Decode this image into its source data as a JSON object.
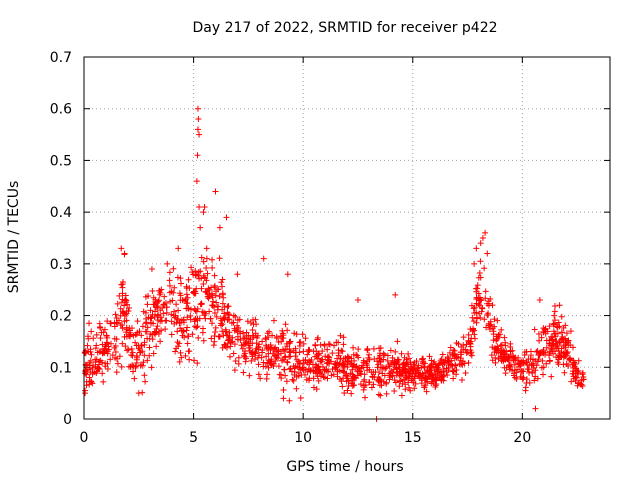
{
  "chart_data": {
    "type": "scatter",
    "title": "Day 217 of 2022, SRMTID for receiver p422",
    "xlabel": "GPS time / hours",
    "ylabel": "SRMTID / TECUs",
    "xlim": [
      0,
      24
    ],
    "ylim": [
      0,
      0.7
    ],
    "xticks": [
      0,
      5,
      10,
      15,
      20
    ],
    "yticks": [
      0,
      0.1,
      0.2,
      0.3,
      0.4,
      0.5,
      0.6,
      0.7
    ],
    "grid": true,
    "marker": "plus",
    "color": "#ff0000",
    "series": [
      {
        "name": "SRMTID",
        "envelope": [
          {
            "x": 0.0,
            "mean": 0.11,
            "spread": 0.05
          },
          {
            "x": 0.5,
            "mean": 0.12,
            "spread": 0.06
          },
          {
            "x": 1.0,
            "mean": 0.13,
            "spread": 0.05
          },
          {
            "x": 1.5,
            "mean": 0.15,
            "spread": 0.06
          },
          {
            "x": 1.8,
            "mean": 0.22,
            "spread": 0.08
          },
          {
            "x": 2.2,
            "mean": 0.12,
            "spread": 0.06
          },
          {
            "x": 2.7,
            "mean": 0.13,
            "spread": 0.06
          },
          {
            "x": 3.0,
            "mean": 0.18,
            "spread": 0.06
          },
          {
            "x": 3.5,
            "mean": 0.21,
            "spread": 0.07
          },
          {
            "x": 4.0,
            "mean": 0.22,
            "spread": 0.07
          },
          {
            "x": 4.5,
            "mean": 0.19,
            "spread": 0.07
          },
          {
            "x": 5.0,
            "mean": 0.22,
            "spread": 0.09
          },
          {
            "x": 5.5,
            "mean": 0.25,
            "spread": 0.08
          },
          {
            "x": 6.0,
            "mean": 0.22,
            "spread": 0.07
          },
          {
            "x": 6.5,
            "mean": 0.18,
            "spread": 0.06
          },
          {
            "x": 7.0,
            "mean": 0.15,
            "spread": 0.05
          },
          {
            "x": 8.0,
            "mean": 0.13,
            "spread": 0.05
          },
          {
            "x": 9.0,
            "mean": 0.13,
            "spread": 0.05
          },
          {
            "x": 10.0,
            "mean": 0.11,
            "spread": 0.05
          },
          {
            "x": 11.0,
            "mean": 0.11,
            "spread": 0.04
          },
          {
            "x": 12.0,
            "mean": 0.1,
            "spread": 0.04
          },
          {
            "x": 13.0,
            "mean": 0.09,
            "spread": 0.04
          },
          {
            "x": 14.0,
            "mean": 0.1,
            "spread": 0.04
          },
          {
            "x": 15.0,
            "mean": 0.09,
            "spread": 0.03
          },
          {
            "x": 16.0,
            "mean": 0.09,
            "spread": 0.03
          },
          {
            "x": 17.0,
            "mean": 0.11,
            "spread": 0.03
          },
          {
            "x": 17.6,
            "mean": 0.14,
            "spread": 0.04
          },
          {
            "x": 18.0,
            "mean": 0.25,
            "spread": 0.07
          },
          {
            "x": 18.4,
            "mean": 0.22,
            "spread": 0.07
          },
          {
            "x": 18.8,
            "mean": 0.14,
            "spread": 0.04
          },
          {
            "x": 19.5,
            "mean": 0.11,
            "spread": 0.03
          },
          {
            "x": 20.0,
            "mean": 0.1,
            "spread": 0.03
          },
          {
            "x": 20.5,
            "mean": 0.1,
            "spread": 0.04
          },
          {
            "x": 21.0,
            "mean": 0.14,
            "spread": 0.05
          },
          {
            "x": 21.5,
            "mean": 0.15,
            "spread": 0.05
          },
          {
            "x": 22.0,
            "mean": 0.13,
            "spread": 0.04
          },
          {
            "x": 22.5,
            "mean": 0.09,
            "spread": 0.03
          },
          {
            "x": 22.8,
            "mean": 0.07,
            "spread": 0.02
          }
        ],
        "peaks": [
          {
            "x": 5.2,
            "y": 0.6
          },
          {
            "x": 5.22,
            "y": 0.58
          },
          {
            "x": 5.2,
            "y": 0.56
          },
          {
            "x": 5.25,
            "y": 0.55
          },
          {
            "x": 5.18,
            "y": 0.51
          },
          {
            "x": 5.15,
            "y": 0.46
          },
          {
            "x": 5.25,
            "y": 0.41
          },
          {
            "x": 5.5,
            "y": 0.41
          },
          {
            "x": 5.45,
            "y": 0.4
          },
          {
            "x": 5.3,
            "y": 0.37
          },
          {
            "x": 5.6,
            "y": 0.33
          },
          {
            "x": 6.0,
            "y": 0.44
          },
          {
            "x": 6.5,
            "y": 0.39
          },
          {
            "x": 6.2,
            "y": 0.37
          },
          {
            "x": 4.3,
            "y": 0.33
          },
          {
            "x": 3.8,
            "y": 0.3
          },
          {
            "x": 3.1,
            "y": 0.29
          },
          {
            "x": 1.7,
            "y": 0.33
          },
          {
            "x": 1.85,
            "y": 0.32
          },
          {
            "x": 8.2,
            "y": 0.31
          },
          {
            "x": 9.3,
            "y": 0.28
          },
          {
            "x": 7.0,
            "y": 0.28
          },
          {
            "x": 18.3,
            "y": 0.36
          },
          {
            "x": 18.2,
            "y": 0.35
          },
          {
            "x": 18.1,
            "y": 0.34
          },
          {
            "x": 17.9,
            "y": 0.33
          },
          {
            "x": 18.4,
            "y": 0.32
          },
          {
            "x": 17.8,
            "y": 0.3
          },
          {
            "x": 14.2,
            "y": 0.24
          },
          {
            "x": 12.5,
            "y": 0.23
          },
          {
            "x": 20.8,
            "y": 0.23
          },
          {
            "x": 21.7,
            "y": 0.22
          }
        ],
        "lows": [
          {
            "x": 13.35,
            "y": 0.0
          },
          {
            "x": 20.6,
            "y": 0.02
          },
          {
            "x": 0.05,
            "y": 0.05
          },
          {
            "x": 2.5,
            "y": 0.05
          },
          {
            "x": 9.1,
            "y": 0.04
          }
        ]
      }
    ]
  }
}
